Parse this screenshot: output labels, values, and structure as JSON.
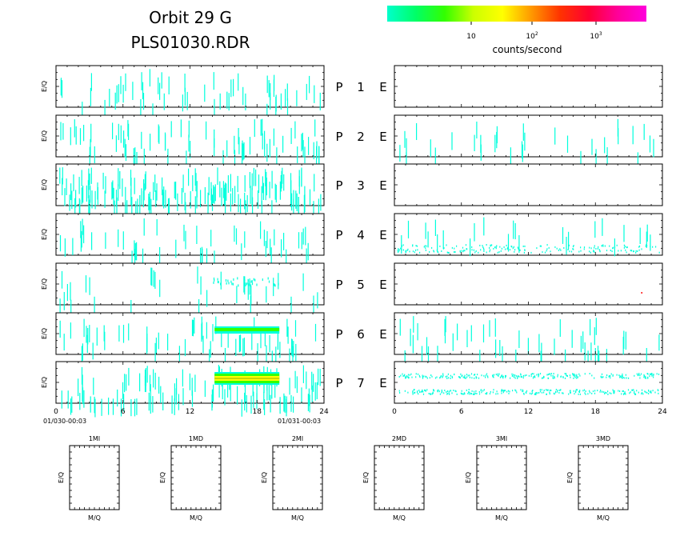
{
  "header": {
    "title_line1": "Orbit 29 G",
    "title_line2": "PLS01030.RDR"
  },
  "colorbar": {
    "label": "counts/second",
    "ticks": [
      {
        "base": "10",
        "exp": ""
      },
      {
        "base": "10",
        "exp": "2"
      },
      {
        "base": "10",
        "exp": "3"
      }
    ],
    "gradient_colors": [
      "#00ffcc",
      "#00ff66",
      "#33ff00",
      "#ccff00",
      "#ffff00",
      "#ff9900",
      "#ff3300",
      "#ff0033",
      "#ff0099",
      "#ff00dd"
    ]
  },
  "chart_data": {
    "type": "heatmap",
    "x_axis": {
      "range": [
        0,
        24
      ],
      "ticks": [
        "0",
        "6",
        "12",
        "18",
        "24"
      ],
      "start_label": "01/030-00:03",
      "end_label": "01/031-00:03"
    },
    "ylabel": "E/Q",
    "panels": [
      {
        "row_label": "P",
        "number": "1",
        "side_label": "E",
        "left_density": 0.35,
        "right_density": 0.0
      },
      {
        "row_label": "P",
        "number": "2",
        "side_label": "E",
        "left_density": 0.45,
        "right_density": 0.2
      },
      {
        "row_label": "P",
        "number": "3",
        "side_label": "E",
        "left_density": 1.0,
        "right_density": 0.0
      },
      {
        "row_label": "P",
        "number": "4",
        "side_label": "E",
        "left_density": 0.3,
        "right_density": 0.5
      },
      {
        "row_label": "P",
        "number": "5",
        "side_label": "E",
        "left_density": 0.2,
        "right_density": 0.0
      },
      {
        "row_label": "P",
        "number": "6",
        "side_label": "E",
        "left_density": 0.4,
        "right_density": 0.3
      },
      {
        "row_label": "P",
        "number": "7",
        "side_label": "E",
        "left_density": 0.7,
        "right_density": 1.0
      }
    ],
    "bottom_panels": [
      {
        "title": "1MI",
        "ylabel": "E/Q",
        "xlabel": "M/Q"
      },
      {
        "title": "1MD",
        "ylabel": "E/Q",
        "xlabel": "M/Q"
      },
      {
        "title": "2MI",
        "ylabel": "E/Q",
        "xlabel": "M/Q"
      },
      {
        "title": "2MD",
        "ylabel": "E/Q",
        "xlabel": "M/Q"
      },
      {
        "title": "3MI",
        "ylabel": "E/Q",
        "xlabel": "M/Q"
      },
      {
        "title": "3MD",
        "ylabel": "E/Q",
        "xlabel": "M/Q"
      }
    ],
    "colors": {
      "low": "#00ffdd",
      "mid": "#33ff00",
      "high": "#ffff00",
      "peak": "#ff0000"
    }
  }
}
